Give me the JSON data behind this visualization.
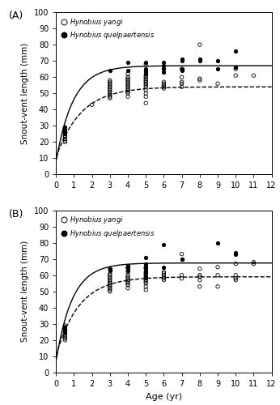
{
  "panel_A_label": "(A)",
  "panel_B_label": "(B)",
  "ylabel": "Snout-vent length (mm)",
  "xlabel": "Age (yr)",
  "ylim": [
    0,
    100
  ],
  "xlim": [
    0,
    12
  ],
  "yticks": [
    0,
    10,
    20,
    30,
    40,
    50,
    60,
    70,
    80,
    90,
    100
  ],
  "xticks": [
    0,
    1,
    2,
    3,
    4,
    5,
    6,
    7,
    8,
    9,
    10,
    11,
    12
  ],
  "legend_yangi": "Hynobius yangi",
  "legend_quel": "Hynobius quelpaertensis",
  "A_yangi_data": {
    "x": [
      0.5,
      0.5,
      0.5,
      0.5,
      0.5,
      0.5,
      0.5,
      0.5,
      0.5,
      0.5,
      2,
      3,
      3,
      3,
      3,
      3,
      3,
      3,
      3,
      3,
      3,
      3,
      3,
      4,
      4,
      4,
      4,
      4,
      4,
      4,
      4,
      4,
      4,
      4,
      4,
      4,
      5,
      5,
      5,
      5,
      5,
      5,
      5,
      5,
      5,
      5,
      5,
      5,
      5,
      6,
      6,
      6,
      6,
      6,
      6,
      7,
      7,
      7,
      7,
      7,
      8,
      8,
      8,
      9,
      10,
      10,
      11
    ],
    "y": [
      20,
      21,
      22,
      23,
      24,
      25,
      26,
      27,
      28,
      29,
      43,
      47,
      48,
      49,
      50,
      51,
      52,
      53,
      54,
      55,
      56,
      57,
      58,
      48,
      50,
      51,
      52,
      53,
      54,
      55,
      56,
      57,
      58,
      59,
      60,
      62,
      44,
      48,
      50,
      52,
      54,
      55,
      56,
      57,
      58,
      59,
      60,
      61,
      68,
      53,
      54,
      55,
      56,
      57,
      65,
      54,
      56,
      57,
      60,
      65,
      58,
      59,
      80,
      56,
      65,
      61,
      61
    ]
  },
  "A_quel_data": {
    "x": [
      0.5,
      0.5,
      0.5,
      0.5,
      3,
      4,
      4,
      5,
      5,
      5,
      5,
      5,
      6,
      6,
      6,
      6,
      7,
      7,
      7,
      7,
      8,
      8,
      9,
      9,
      10,
      10
    ],
    "y": [
      25,
      26,
      27,
      29,
      64,
      64,
      69,
      62,
      63,
      64,
      65,
      69,
      63,
      65,
      67,
      69,
      64,
      65,
      70,
      71,
      70,
      71,
      65,
      70,
      66,
      76
    ]
  },
  "A_yangi_vb": {
    "Linf": 54.0,
    "K": 0.72,
    "t0": -0.3
  },
  "A_quel_vb": {
    "Linf": 67.0,
    "K": 1.05,
    "t0": -0.12
  },
  "B_yangi_data": {
    "x": [
      0.5,
      0.5,
      0.5,
      0.5,
      0.5,
      0.5,
      0.5,
      0.5,
      0.5,
      0.5,
      3,
      3,
      3,
      3,
      3,
      3,
      3,
      3,
      3,
      3,
      3,
      3,
      3,
      4,
      4,
      4,
      4,
      4,
      4,
      4,
      4,
      4,
      4,
      4,
      5,
      5,
      5,
      5,
      5,
      5,
      5,
      5,
      5,
      5,
      5,
      5,
      6,
      6,
      6,
      6,
      6,
      6,
      7,
      7,
      7,
      8,
      8,
      8,
      8,
      8,
      9,
      9,
      9,
      10,
      10,
      10,
      10,
      11,
      11
    ],
    "y": [
      20,
      21,
      22,
      23,
      24,
      25,
      26,
      27,
      28,
      29,
      50,
      51,
      52,
      53,
      54,
      55,
      56,
      57,
      58,
      59,
      60,
      61,
      64,
      52,
      54,
      55,
      56,
      57,
      58,
      59,
      60,
      62,
      64,
      65,
      51,
      53,
      55,
      56,
      57,
      58,
      59,
      60,
      61,
      62,
      64,
      65,
      57,
      58,
      59,
      60,
      61,
      62,
      58,
      60,
      73,
      53,
      57,
      59,
      60,
      64,
      53,
      60,
      65,
      57,
      58,
      60,
      67,
      67,
      68
    ]
  },
  "B_quel_data": {
    "x": [
      0.5,
      0.5,
      0.5,
      3,
      3,
      4,
      4,
      4,
      5,
      5,
      5,
      5,
      5,
      5,
      6,
      6,
      7,
      7,
      9,
      10,
      10
    ],
    "y": [
      25,
      26,
      28,
      63,
      64,
      63,
      65,
      66,
      59,
      62,
      63,
      65,
      67,
      71,
      65,
      79,
      70,
      70,
      80,
      73,
      74
    ]
  },
  "B_yangi_vb": {
    "Linf": 59.0,
    "K": 0.78,
    "t0": -0.25
  },
  "B_quel_vb": {
    "Linf": 67.5,
    "K": 1.1,
    "t0": -0.1
  }
}
